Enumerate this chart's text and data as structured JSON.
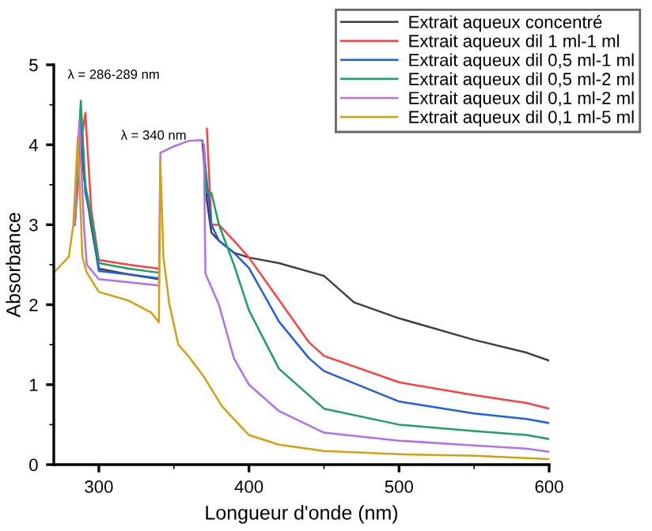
{
  "chart_data": {
    "type": "line",
    "xlabel": "Longueur d'onde (nm)",
    "ylabel": "Absorbance",
    "xlim": [
      270,
      600
    ],
    "ylim": [
      0,
      5
    ],
    "xticks": [
      300,
      400,
      500,
      600
    ],
    "yticks": [
      0,
      1,
      2,
      3,
      4,
      5
    ],
    "legend": "top right",
    "grid": false,
    "marker": "none",
    "line_style": "solid",
    "annotations": [
      {
        "text": "λ = 286-289 nm",
        "x": 288,
        "y": 4.55
      },
      {
        "text": "λ = 340 nm",
        "x": 341,
        "y": 3.9
      }
    ],
    "series": [
      {
        "name": "Extrait aqueux concentré",
        "color": "#404040",
        "x": [
          287,
          290,
          295,
          300,
          320,
          340,
          355,
          369,
          372,
          375,
          380,
          390,
          400,
          420,
          450,
          470,
          500,
          550,
          585,
          600
        ],
        "values": [
          4.3,
          3.6,
          2.98,
          2.45,
          2.38,
          2.32,
          null,
          4.05,
          3.3,
          2.9,
          2.8,
          2.65,
          2.59,
          2.52,
          2.36,
          2.03,
          1.83,
          1.56,
          1.4,
          1.3
        ]
      },
      {
        "name": "Extrait aqueux dil 1 ml-1 ml",
        "color": "#ff4040",
        "x": [
          284,
          288,
          291,
          295,
          300,
          320,
          340,
          355,
          372,
          375,
          380,
          390,
          400,
          420,
          440,
          450,
          500,
          550,
          585,
          600
        ],
        "values": [
          3.0,
          4.0,
          4.4,
          3.18,
          2.56,
          2.5,
          2.45,
          null,
          4.2,
          3.0,
          3.0,
          2.8,
          2.59,
          2.06,
          1.53,
          1.36,
          1.03,
          0.87,
          0.77,
          0.7
        ]
      },
      {
        "name": "Extrait aqueux dil 0,5 ml-1 ml",
        "color": "#2060e0",
        "x": [
          284,
          288,
          291,
          295,
          300,
          320,
          340,
          355,
          370,
          375,
          380,
          390,
          400,
          420,
          440,
          450,
          500,
          550,
          585,
          600
        ],
        "values": [
          3.0,
          4.45,
          3.4,
          3.05,
          2.42,
          2.38,
          2.33,
          null,
          3.9,
          3.0,
          2.8,
          2.65,
          2.46,
          1.79,
          1.33,
          1.17,
          0.79,
          0.64,
          0.57,
          0.52
        ]
      },
      {
        "name": "Extrait aqueux dil 0,5 ml-2 ml",
        "color": "#20a060",
        "x": [
          284,
          288,
          291,
          295,
          300,
          320,
          340,
          355,
          370,
          372,
          375,
          380,
          390,
          400,
          420,
          450,
          500,
          550,
          585,
          600
        ],
        "values": [
          3.0,
          4.55,
          3.5,
          3.1,
          2.52,
          2.45,
          2.4,
          null,
          4.0,
          3.4,
          3.4,
          3.0,
          2.5,
          1.93,
          1.2,
          0.7,
          0.5,
          0.42,
          0.37,
          0.32
        ]
      },
      {
        "name": "Extrait aqueux dil 0,1 ml-2 ml",
        "color": "#b070f0",
        "x": [
          284,
          287,
          290,
          292,
          300,
          320,
          340,
          341,
          350,
          360,
          368,
          370,
          371,
          380,
          390,
          400,
          420,
          450,
          500,
          550,
          585,
          600
        ],
        "values": [
          3.0,
          4.3,
          3.0,
          2.5,
          2.32,
          2.28,
          2.24,
          3.9,
          3.98,
          4.05,
          4.06,
          4.0,
          2.39,
          2.0,
          1.33,
          1.0,
          0.67,
          0.4,
          0.3,
          0.24,
          0.2,
          0.16
        ]
      },
      {
        "name": "Extrait aqueux dil 0,1 ml-5 ml",
        "color": "#d4a010",
        "x": [
          270,
          275,
          280,
          283,
          286,
          289,
          292,
          300,
          320,
          335,
          340,
          341,
          343,
          347,
          353,
          360,
          370,
          382,
          400,
          420,
          450,
          500,
          550,
          600
        ],
        "values": [
          2.4,
          2.5,
          2.6,
          3.0,
          4.1,
          2.6,
          2.4,
          2.16,
          2.05,
          1.9,
          1.78,
          3.8,
          2.6,
          2.0,
          1.5,
          1.35,
          1.1,
          0.73,
          0.37,
          0.25,
          0.17,
          0.13,
          0.11,
          0.07
        ]
      }
    ]
  }
}
